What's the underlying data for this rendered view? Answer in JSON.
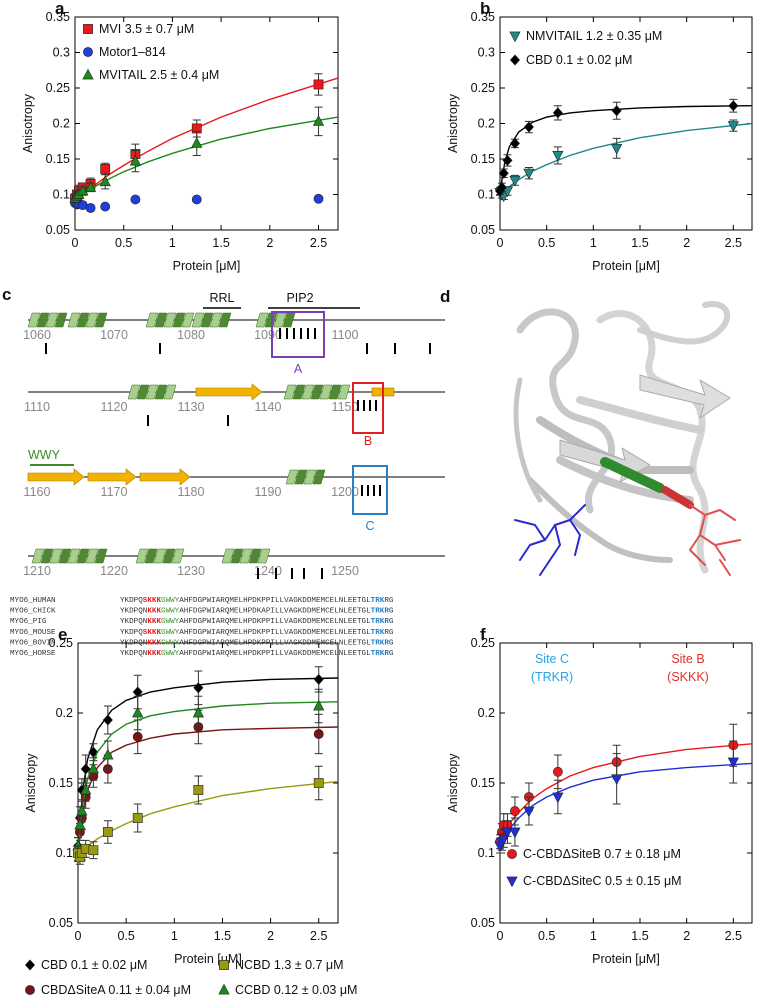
{
  "chart_data": [
    {
      "type": "scatter",
      "panel": "a",
      "xlabel": "Protein [μM]",
      "ylabel": "Anisotropy",
      "xlim": [
        0,
        2.7
      ],
      "ylim": [
        0.05,
        0.35
      ],
      "xticks": [
        0,
        0.5,
        1,
        1.5,
        2,
        2.5
      ],
      "yticks": [
        0.05,
        0.1,
        0.15,
        0.2,
        0.25,
        0.3,
        0.35
      ],
      "legend": "upper left",
      "x": [
        0,
        0.02,
        0.04,
        0.08,
        0.16,
        0.31,
        0.62,
        1.25,
        2.5
      ],
      "fit_x": [
        0,
        0.05,
        0.1,
        0.2,
        0.35,
        0.5,
        0.75,
        1,
        1.5,
        2,
        2.7
      ],
      "series": [
        {
          "name": "MVI 3.5 ± 0.7 μM",
          "color": "#e8191c",
          "marker": "square",
          "values": [
            0.094,
            0.1,
            0.105,
            0.11,
            0.115,
            0.136,
            0.157,
            0.193,
            0.255
          ],
          "errors": [
            0.006,
            0.005,
            0.008,
            0.006,
            0.008,
            0.008,
            0.014,
            0.012,
            0.015
          ],
          "fit": [
            0.092,
            0.0975,
            0.103,
            0.113,
            0.128,
            0.141,
            0.161,
            0.179,
            0.209,
            0.234,
            0.264
          ]
        },
        {
          "name": "Motor1–814",
          "color": "#1f3fdb",
          "marker": "circle",
          "values": [
            0.088,
            0.086,
            0.087,
            0.085,
            0.081,
            0.083,
            0.093,
            0.093,
            0.094
          ]
        },
        {
          "name": "MVITAIL 2.5 ± 0.4 μM",
          "color": "#1e8a1e",
          "marker": "triangle",
          "values": [
            0.095,
            0.098,
            0.1,
            0.105,
            0.11,
            0.118,
            0.147,
            0.172,
            0.203
          ],
          "errors": [
            0.006,
            0.006,
            0.006,
            0.006,
            0.006,
            0.01,
            0.015,
            0.017,
            0.02
          ],
          "fit": [
            0.095,
            0.099,
            0.104,
            0.111,
            0.122,
            0.132,
            0.146,
            0.158,
            0.178,
            0.193,
            0.209
          ]
        }
      ]
    },
    {
      "type": "scatter",
      "panel": "b",
      "xlabel": "Protein [μM]",
      "ylabel": "Anisotropy",
      "xlim": [
        0,
        2.7
      ],
      "ylim": [
        0.05,
        0.35
      ],
      "xticks": [
        0,
        0.5,
        1,
        1.5,
        2,
        2.5
      ],
      "yticks": [
        0.05,
        0.1,
        0.15,
        0.2,
        0.25,
        0.3,
        0.35
      ],
      "legend": "upper left",
      "x": [
        0,
        0.02,
        0.04,
        0.08,
        0.16,
        0.31,
        0.62,
        1.25,
        2.5
      ],
      "fit_x": [
        0,
        0.05,
        0.1,
        0.2,
        0.35,
        0.5,
        0.75,
        1,
        1.5,
        2,
        2.7
      ],
      "series": [
        {
          "name": "NMVITAIL 1.2 ± 0.35 μM",
          "color": "#1f8a8a",
          "marker": "triangle-down",
          "values": [
            0.103,
            0.1,
            0.098,
            0.105,
            0.12,
            0.13,
            0.155,
            0.165,
            0.197
          ],
          "errors": [
            0.004,
            0.005,
            0.005,
            0.006,
            0.007,
            0.008,
            0.012,
            0.014,
            0.008
          ],
          "fit": [
            0.1,
            0.106,
            0.111,
            0.121,
            0.133,
            0.142,
            0.155,
            0.165,
            0.18,
            0.19,
            0.2
          ]
        },
        {
          "name": "CBD 0.1 ± 0.02 μM",
          "color": "#000000",
          "marker": "diamond",
          "values": [
            0.105,
            0.11,
            0.13,
            0.148,
            0.172,
            0.195,
            0.215,
            0.218,
            0.225
          ],
          "errors": [
            0.005,
            0.006,
            0.006,
            0.008,
            0.006,
            0.008,
            0.01,
            0.012,
            0.009
          ],
          "fit": [
            0.103,
            0.145,
            0.167,
            0.188,
            0.202,
            0.209,
            0.215,
            0.218,
            0.222,
            0.224,
            0.225
          ]
        }
      ]
    },
    {
      "type": "scatter",
      "panel": "e",
      "xlabel": "Protein [μM]",
      "ylabel": "Anisotropy",
      "xlim": [
        0,
        2.7
      ],
      "ylim": [
        0.05,
        0.25
      ],
      "xticks": [
        0,
        0.5,
        1,
        1.5,
        2,
        2.5
      ],
      "yticks": [
        0.05,
        0.1,
        0.15,
        0.2,
        0.25
      ],
      "legend": "below",
      "x": [
        0,
        0.02,
        0.04,
        0.08,
        0.16,
        0.31,
        0.62,
        1.25,
        2.5
      ],
      "fit_x": [
        0,
        0.05,
        0.1,
        0.2,
        0.35,
        0.5,
        0.75,
        1,
        1.5,
        2,
        2.7
      ],
      "series": [
        {
          "name": "CBD 0.1 ± 0.02 μM",
          "color": "#000000",
          "marker": "diamond",
          "values": [
            0.105,
            0.125,
            0.145,
            0.16,
            0.172,
            0.195,
            0.215,
            0.218,
            0.224
          ],
          "errors": [
            0.006,
            0.008,
            0.008,
            0.01,
            0.006,
            0.01,
            0.012,
            0.012,
            0.009
          ],
          "fit": [
            0.103,
            0.145,
            0.167,
            0.188,
            0.202,
            0.209,
            0.215,
            0.218,
            0.222,
            0.224,
            0.225
          ]
        },
        {
          "name": "CBDΔSiteA 0.11 ± 0.04 μM",
          "color": "#7a1515",
          "marker": "circle",
          "values": [
            0.1,
            0.115,
            0.125,
            0.14,
            0.155,
            0.16,
            0.183,
            0.19,
            0.185
          ],
          "errors": [
            0.006,
            0.006,
            0.008,
            0.008,
            0.008,
            0.01,
            0.012,
            0.012,
            0.014
          ],
          "fit": [
            0.1,
            0.129,
            0.145,
            0.161,
            0.172,
            0.177,
            0.182,
            0.185,
            0.188,
            0.189,
            0.19
          ]
        },
        {
          "name": "CCBD 0.12 ± 0.03 μM",
          "color": "#1e8a1e",
          "marker": "triangle",
          "values": [
            0.105,
            0.12,
            0.13,
            0.145,
            0.16,
            0.17,
            0.2,
            0.2,
            0.205
          ],
          "errors": [
            0.006,
            0.006,
            0.008,
            0.008,
            0.008,
            0.01,
            0.012,
            0.012,
            0.012
          ],
          "fit": [
            0.103,
            0.135,
            0.153,
            0.172,
            0.185,
            0.192,
            0.198,
            0.201,
            0.205,
            0.207,
            0.208
          ]
        },
        {
          "name": "NCBD 1.3 ± 0.7 μM",
          "color": "#9a9a10",
          "marker": "square",
          "values": [
            0.1,
            0.097,
            0.1,
            0.103,
            0.102,
            0.115,
            0.125,
            0.145,
            0.15
          ],
          "errors": [
            0.005,
            0.005,
            0.005,
            0.006,
            0.006,
            0.008,
            0.01,
            0.01,
            0.012
          ],
          "fit": [
            0.1,
            0.103,
            0.105,
            0.11,
            0.116,
            0.121,
            0.128,
            0.133,
            0.141,
            0.146,
            0.151
          ]
        }
      ]
    },
    {
      "type": "scatter",
      "panel": "f",
      "xlabel": "Protein [μM]",
      "ylabel": "Anisotropy",
      "xlim": [
        0,
        2.7
      ],
      "ylim": [
        0.05,
        0.25
      ],
      "xticks": [
        0,
        0.5,
        1,
        1.5,
        2,
        2.5
      ],
      "yticks": [
        0.05,
        0.1,
        0.15,
        0.2,
        0.25
      ],
      "legend": "lower right",
      "x": [
        0,
        0.02,
        0.04,
        0.08,
        0.16,
        0.31,
        0.62,
        1.25,
        2.5
      ],
      "fit_x": [
        0,
        0.05,
        0.1,
        0.2,
        0.35,
        0.5,
        0.75,
        1,
        1.5,
        2,
        2.7
      ],
      "series": [
        {
          "name": "C-CBDΔSiteB 0.7 ± 0.18 μM",
          "color": "#e8191c",
          "marker": "circle",
          "values": [
            0.108,
            0.115,
            0.12,
            0.12,
            0.13,
            0.14,
            0.158,
            0.165,
            0.177
          ],
          "errors": [
            0.005,
            0.006,
            0.008,
            0.008,
            0.01,
            0.01,
            0.012,
            0.012,
            0.015
          ],
          "fit": [
            0.11,
            0.116,
            0.121,
            0.129,
            0.139,
            0.146,
            0.155,
            0.161,
            0.169,
            0.174,
            0.178
          ]
        },
        {
          "name": "C-CBDΔSiteC 0.5 ± 0.15 μM",
          "color": "#1f2fd8",
          "marker": "triangle-down",
          "values": [
            0.105,
            0.108,
            0.11,
            0.115,
            0.115,
            0.13,
            0.14,
            0.153,
            0.165
          ],
          "errors": [
            0.005,
            0.006,
            0.006,
            0.008,
            0.01,
            0.01,
            0.012,
            0.018,
            0.015
          ],
          "fit": [
            0.105,
            0.111,
            0.117,
            0.125,
            0.134,
            0.14,
            0.147,
            0.152,
            0.158,
            0.161,
            0.164
          ]
        }
      ]
    }
  ],
  "panel_c": {
    "letter": "c",
    "rrl": "RRL",
    "pip2": "PIP2",
    "wwy": "WWY",
    "rows": [
      [
        1060,
        1070,
        1080,
        1090,
        1100
      ],
      [
        1110,
        1120,
        1130,
        1140,
        1150
      ],
      [
        1160,
        1170,
        1180,
        1190,
        1200
      ],
      [
        1210,
        1220,
        1230,
        1240,
        1250
      ]
    ],
    "sites": [
      "A",
      "B",
      "C"
    ],
    "alignment": [
      {
        "name": "MYO6_HUMAN",
        "seq": [
          "YKDPQ",
          "SKKK",
          "GWWY",
          "AHFDGPWIARQMELHPDKPPILLVAGKDDMEMCELNLEETGL",
          "TRKR",
          "G"
        ]
      },
      {
        "name": "MYO6_CHICK",
        "seq": [
          "YKDPQN",
          "KKK",
          "GWWY",
          "AHFDGPWIARQMELHPDKAPILLVAGKDDMEMCELNLEETGL",
          "TRKR",
          "G"
        ]
      },
      {
        "name": "MYO6_PIG",
        "seq": [
          "YKDPQN",
          "KKK",
          "GWWY",
          "AHFDGPWIARQMELHPDKPPILLVAGKDDMEMCELNLEETGL",
          "TRKR",
          "G"
        ]
      },
      {
        "name": "MYO6_MOUSE",
        "seq": [
          "YKDPQ",
          "SKKK",
          "GWWY",
          "AHFDGPWIARQMELHPDKPPILLVAGKDDMEMCELNLEETGL",
          "TRKR",
          "G"
        ]
      },
      {
        "name": "MYO6_BOVIN",
        "seq": [
          "YKDPQN",
          "KKK",
          "GWWY",
          "AHFDGPWIARQMELHPDKPPILLVAGKDDMEMCELNLEETGL",
          "TRKR",
          "G"
        ]
      },
      {
        "name": "MYO6_HORSE",
        "seq": [
          "YKDPQN",
          "KKK",
          "GWWY",
          "AHFDGPWIARQMELHPDKPPILLVAGKDDMEMCELNLEETGL",
          "TRKR",
          "G"
        ]
      }
    ]
  },
  "panel_d": {
    "letter": "d",
    "site_c": [
      "Site C",
      "(TRKR)"
    ],
    "site_b": [
      "Site B",
      "(SKKK)"
    ]
  }
}
